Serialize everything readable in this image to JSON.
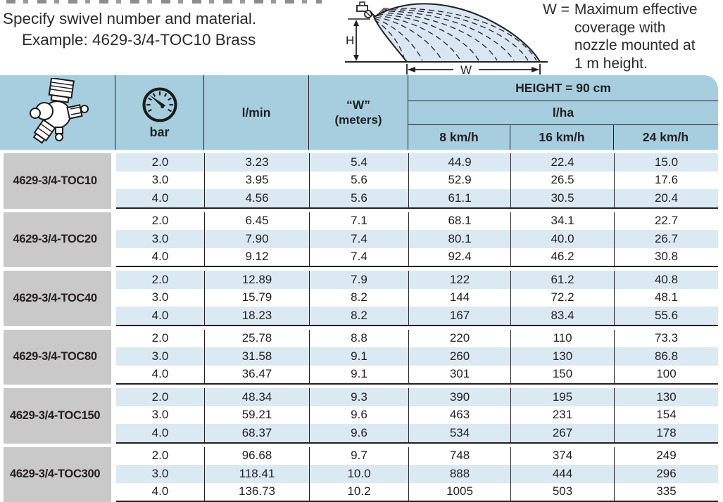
{
  "colors": {
    "header_blue": "#a6cedf",
    "row_blue": "#dbe9f3",
    "model_gray": "#c9c9ca",
    "line_black": "#231f20",
    "spray_fill": "#dbe6f3"
  },
  "intro": {
    "line1": "Specify swivel number and material.",
    "line2": "Example: 4629-3/4-TOC10 Brass"
  },
  "legend": {
    "prefix": "W =",
    "text": "Maximum effective coverage with nozzle mounted at 1 m height."
  },
  "diagram": {
    "h_label": "H",
    "w_label": "W"
  },
  "table": {
    "header": {
      "bar_label": "bar",
      "lmin_label": "l/min",
      "w_label": "“W”",
      "w_sub": "(meters)",
      "height_label": "HEIGHT = 90 cm",
      "lha_label": "l/ha",
      "speeds": [
        "8 km/h",
        "16 km/h",
        "24 km/h"
      ]
    },
    "groups": [
      {
        "model": "4629-3/4-TOC10",
        "rows": [
          [
            "2.0",
            "3.23",
            "5.4",
            "44.9",
            "22.4",
            "15.0"
          ],
          [
            "3.0",
            "3.95",
            "5.6",
            "52.9",
            "26.5",
            "17.6"
          ],
          [
            "4.0",
            "4.56",
            "5.6",
            "61.1",
            "30.5",
            "20.4"
          ]
        ]
      },
      {
        "model": "4629-3/4-TOC20",
        "rows": [
          [
            "2.0",
            "6.45",
            "7.1",
            "68.1",
            "34.1",
            "22.7"
          ],
          [
            "3.0",
            "7.90",
            "7.4",
            "80.1",
            "40.0",
            "26.7"
          ],
          [
            "4.0",
            "9.12",
            "7.4",
            "92.4",
            "46.2",
            "30.8"
          ]
        ]
      },
      {
        "model": "4629-3/4-TOC40",
        "rows": [
          [
            "2.0",
            "12.89",
            "7.9",
            "122",
            "61.2",
            "40.8"
          ],
          [
            "3.0",
            "15.79",
            "8.2",
            "144",
            "72.2",
            "48.1"
          ],
          [
            "4.0",
            "18.23",
            "8.2",
            "167",
            "83.4",
            "55.6"
          ]
        ]
      },
      {
        "model": "4629-3/4-TOC80",
        "rows": [
          [
            "2.0",
            "25.78",
            "8.8",
            "220",
            "110",
            "73.3"
          ],
          [
            "3.0",
            "31.58",
            "9.1",
            "260",
            "130",
            "86.8"
          ],
          [
            "4.0",
            "36.47",
            "9.1",
            "301",
            "150",
            "100"
          ]
        ]
      },
      {
        "model": "4629-3/4-TOC150",
        "rows": [
          [
            "2.0",
            "48.34",
            "9.3",
            "390",
            "195",
            "130"
          ],
          [
            "3.0",
            "59.21",
            "9.6",
            "463",
            "231",
            "154"
          ],
          [
            "4.0",
            "68.37",
            "9.6",
            "534",
            "267",
            "178"
          ]
        ]
      },
      {
        "model": "4629-3/4-TOC300",
        "rows": [
          [
            "2.0",
            "96.68",
            "9.7",
            "748",
            "374",
            "249"
          ],
          [
            "3.0",
            "118.41",
            "10.0",
            "888",
            "444",
            "296"
          ],
          [
            "4.0",
            "136.73",
            "10.2",
            "1005",
            "503",
            "335"
          ]
        ]
      }
    ]
  }
}
